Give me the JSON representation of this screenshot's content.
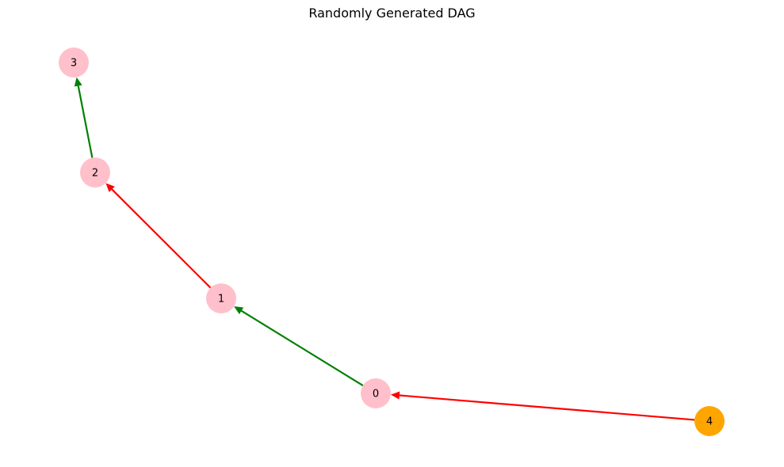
{
  "title": "Randomly Generated DAG",
  "colors": {
    "node_default": "#ffc0cb",
    "node_source": "#ffa500",
    "edge_green": "#008000",
    "edge_red": "#ff0000"
  },
  "nodes": [
    {
      "id": "0",
      "label": "0",
      "color": "#ffc0cb"
    },
    {
      "id": "1",
      "label": "1",
      "color": "#ffc0cb"
    },
    {
      "id": "2",
      "label": "2",
      "color": "#ffc0cb"
    },
    {
      "id": "3",
      "label": "3",
      "color": "#ffc0cb"
    },
    {
      "id": "4",
      "label": "4",
      "color": "#ffa500"
    }
  ],
  "edges": [
    {
      "from": "4",
      "to": "0",
      "color": "#ff0000"
    },
    {
      "from": "0",
      "to": "1",
      "color": "#008000"
    },
    {
      "from": "1",
      "to": "2",
      "color": "#ff0000"
    },
    {
      "from": "2",
      "to": "3",
      "color": "#008000"
    }
  ]
}
